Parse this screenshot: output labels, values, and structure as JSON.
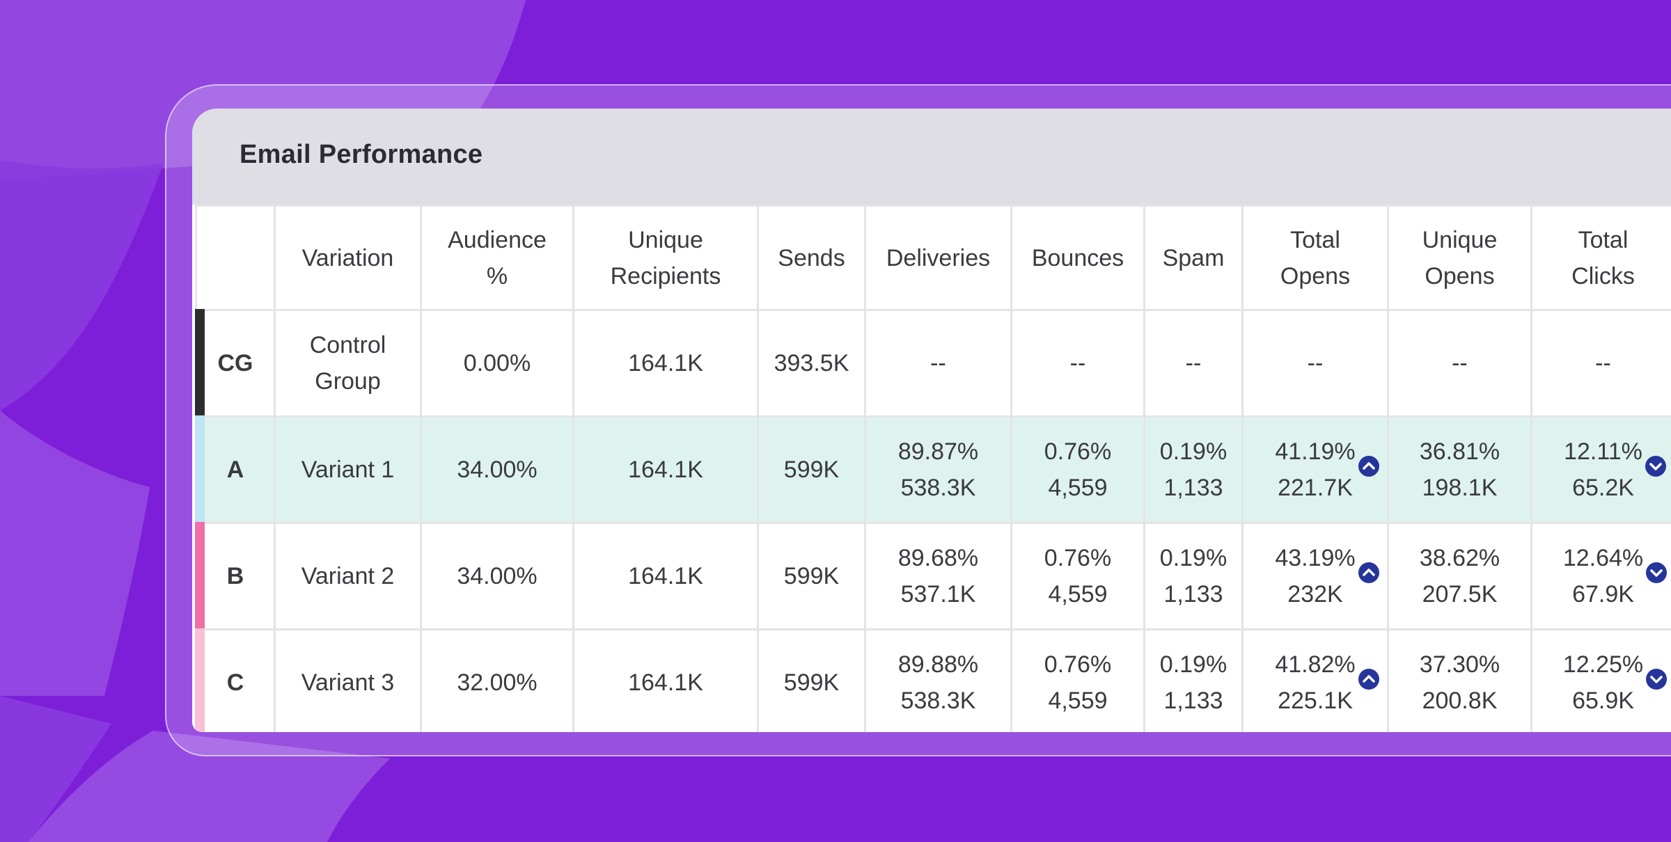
{
  "card": {
    "title": "Email Performance"
  },
  "columns": [
    "",
    "Variation",
    "Audience %",
    "Unique Recipients",
    "Sends",
    "Deliveries",
    "Bounces",
    "Spam",
    "Total Opens",
    "Unique Opens",
    "Total Clicks"
  ],
  "header_lines": {
    "audience": [
      "Audience",
      "%"
    ],
    "unique_recipients": [
      "Unique",
      "Recipients"
    ],
    "total_opens": [
      "Total",
      "Opens"
    ],
    "unique_opens": [
      "Unique",
      "Opens"
    ],
    "total_clicks": [
      "Total",
      "Clicks"
    ]
  },
  "rows": [
    {
      "key": "CG",
      "key_color": "#2d2d2d",
      "variation": [
        "Control",
        "Group"
      ],
      "audience": "0.00%",
      "unique_recipients": "164.1K",
      "sends": "393.5K",
      "deliveries": [
        "--",
        ""
      ],
      "bounces": [
        "--",
        ""
      ],
      "spam": [
        "--",
        ""
      ],
      "total_opens": [
        "--",
        ""
      ],
      "unique_opens": [
        "--",
        ""
      ],
      "total_clicks": [
        "--",
        ""
      ]
    },
    {
      "key": "A",
      "key_color": "#bfe4f5",
      "variation": "Variant 1",
      "audience": "34.00%",
      "unique_recipients": "164.1K",
      "sends": "599K",
      "deliveries": [
        "89.87%",
        "538.3K"
      ],
      "bounces": [
        "0.76%",
        "4,559"
      ],
      "spam": [
        "0.19%",
        "1,133"
      ],
      "total_opens": [
        "41.19%",
        "221.7K"
      ],
      "total_opens_trend": "chevron-up-icon",
      "unique_opens": [
        "36.81%",
        "198.1K"
      ],
      "total_clicks": [
        "12.11%",
        "65.2K"
      ],
      "total_clicks_trend": "chevron-down-icon"
    },
    {
      "key": "B",
      "key_color": "#ef6fa9",
      "variation": "Variant 2",
      "audience": "34.00%",
      "unique_recipients": "164.1K",
      "sends": "599K",
      "deliveries": [
        "89.68%",
        "537.1K"
      ],
      "bounces": [
        "0.76%",
        "4,559"
      ],
      "spam": [
        "0.19%",
        "1,133"
      ],
      "total_opens": [
        "43.19%",
        "232K"
      ],
      "total_opens_trend": "chevron-up-icon",
      "unique_opens": [
        "38.62%",
        "207.5K"
      ],
      "total_clicks": [
        "12.64%",
        "67.9K"
      ],
      "total_clicks_trend": "chevron-down-icon"
    },
    {
      "key": "C",
      "key_color": "#f8bfd6",
      "variation": "Variant 3",
      "audience": "32.00%",
      "unique_recipients": "164.1K",
      "sends": "599K",
      "deliveries": [
        "89.88%",
        "538.3K"
      ],
      "bounces": [
        "0.76%",
        "4,559"
      ],
      "spam": [
        "0.19%",
        "1,133"
      ],
      "total_opens": [
        "41.82%",
        "225.1K"
      ],
      "total_opens_trend": "chevron-up-icon",
      "unique_opens": [
        "37.30%",
        "200.8K"
      ],
      "total_clicks": [
        "12.25%",
        "65.9K"
      ],
      "total_clicks_trend": "chevron-down-icon"
    }
  ],
  "colors": {
    "background": "#7d1fd9",
    "highlight_row": "#dff3ee",
    "trend_badge": "#26359a"
  }
}
